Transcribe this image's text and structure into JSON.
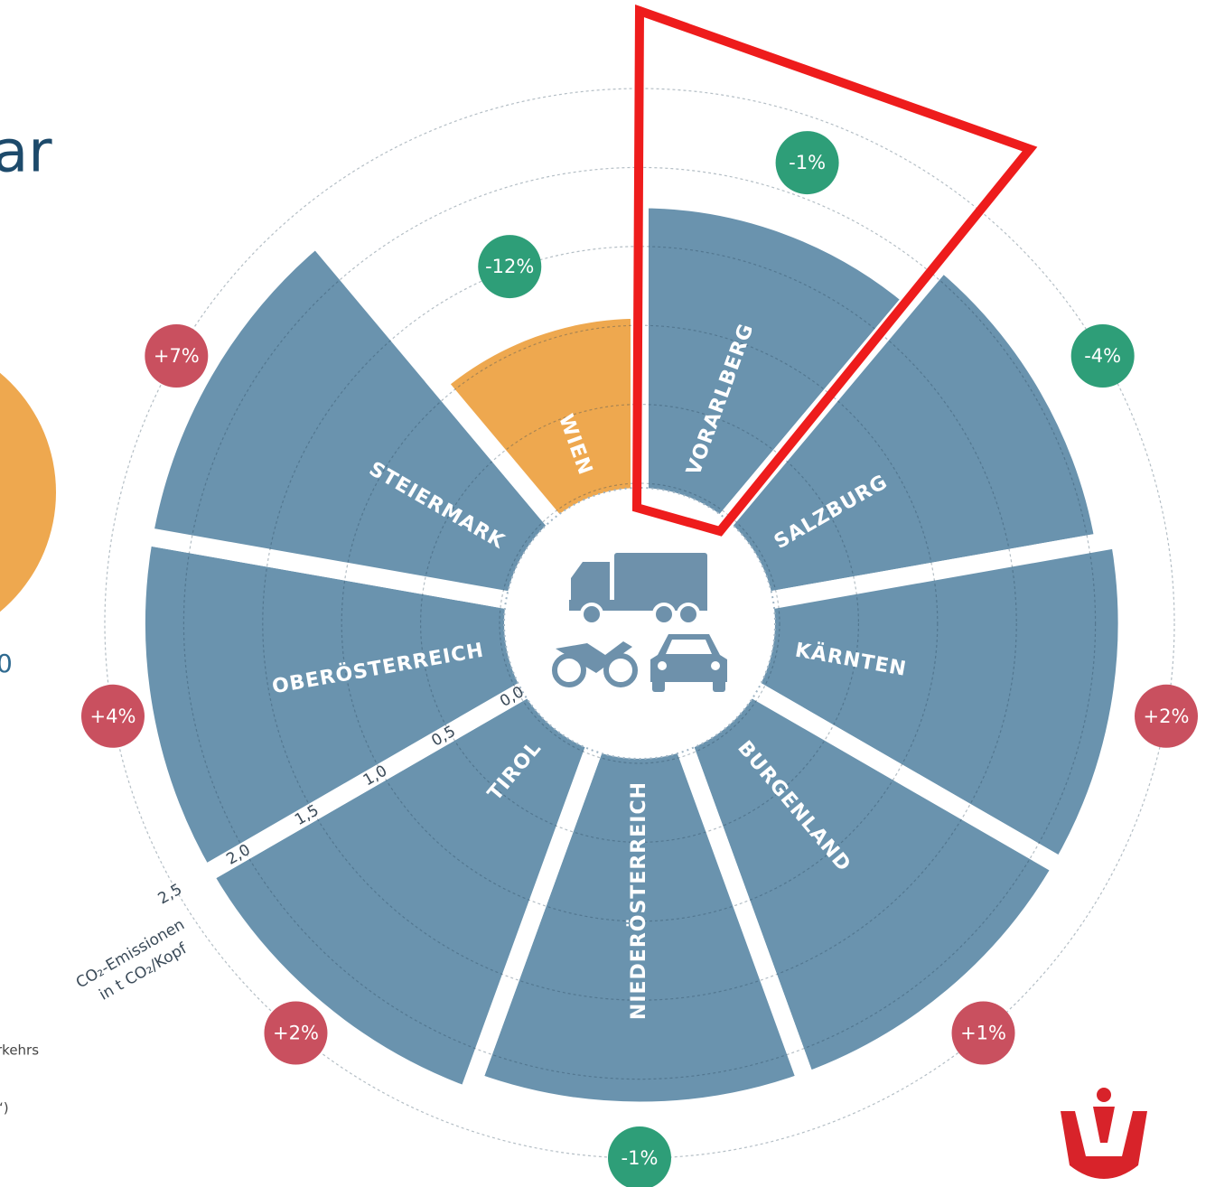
{
  "chart_data": {
    "type": "polar_bar",
    "title": "ar",
    "notes": [
      "0",
      "rkehrs",
      "“)"
    ],
    "axis_label": [
      "CO₂-Emissionen",
      "in t CO₂/Kopf"
    ],
    "categories": [
      "VORARLBERG",
      "SALZBURG",
      "KÄRNTEN",
      "BURGENLAND",
      "NIEDERÖSTERREICH",
      "TIROL",
      "OBERÖSTERREICH",
      "STEIERMARK",
      "WIEN"
    ],
    "values": [
      1.8,
      2.1,
      2.2,
      2.2,
      2.2,
      2.3,
      2.3,
      2.3,
      1.1
    ],
    "bar_colors": [
      "#6a93ae",
      "#6a93ae",
      "#6a93ae",
      "#6a93ae",
      "#6a93ae",
      "#6a93ae",
      "#6a93ae",
      "#6a93ae",
      "#eea84f"
    ],
    "change": [
      -1,
      -4,
      2,
      1,
      -1,
      2,
      4,
      7,
      -12
    ],
    "change_labels": [
      "-1%",
      "-4%",
      "+2%",
      "+1%",
      "-1%",
      "+2%",
      "+4%",
      "+7%",
      "-12%"
    ],
    "positive_color": "#c9505f",
    "negative_color": "#2e9e78",
    "ylim": [
      0,
      2.5
    ],
    "yticks": [
      {
        "value": 0,
        "label": "0,0"
      },
      {
        "value": 0.5,
        "label": "0,5"
      },
      {
        "value": 1,
        "label": "1,0"
      },
      {
        "value": 1.5,
        "label": "1,5"
      },
      {
        "value": 2,
        "label": "2,0"
      },
      {
        "value": 2.5,
        "label": "2,5"
      }
    ],
    "grid": true
  }
}
